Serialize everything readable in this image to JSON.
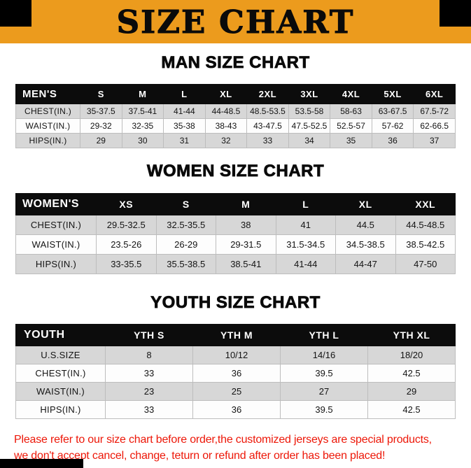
{
  "banner": {
    "title": "SIZE CHART",
    "bg_color": "#EC9B1D",
    "corner_color": "#000000"
  },
  "sections": [
    {
      "heading": "MAN SIZE CHART"
    },
    {
      "heading": "WOMEN SIZE CHART"
    },
    {
      "heading": "YOUTH SIZE CHART"
    }
  ],
  "chart_data": [
    {
      "type": "table",
      "title": "MAN SIZE CHART",
      "columns": [
        "MEN'S",
        "S",
        "M",
        "L",
        "XL",
        "2XL",
        "3XL",
        "4XL",
        "5XL",
        "6XL"
      ],
      "rows": [
        [
          "CHEST(IN.)",
          "35-37.5",
          "37.5-41",
          "41-44",
          "44-48.5",
          "48.5-53.5",
          "53.5-58",
          "58-63",
          "63-67.5",
          "67.5-72"
        ],
        [
          "WAIST(IN.)",
          "29-32",
          "32-35",
          "35-38",
          "38-43",
          "43-47.5",
          "47.5-52.5",
          "52.5-57",
          "57-62",
          "62-66.5"
        ],
        [
          "HIPS(IN.)",
          "29",
          "30",
          "31",
          "32",
          "33",
          "34",
          "35",
          "36",
          "37"
        ]
      ]
    },
    {
      "type": "table",
      "title": "WOMEN SIZE CHART",
      "columns": [
        "WOMEN'S",
        "XS",
        "S",
        "M",
        "L",
        "XL",
        "XXL"
      ],
      "rows": [
        [
          "CHEST(IN.)",
          "29.5-32.5",
          "32.5-35.5",
          "38",
          "41",
          "44.5",
          "44.5-48.5"
        ],
        [
          "WAIST(IN.)",
          "23.5-26",
          "26-29",
          "29-31.5",
          "31.5-34.5",
          "34.5-38.5",
          "38.5-42.5"
        ],
        [
          "HIPS(IN.)",
          "33-35.5",
          "35.5-38.5",
          "38.5-41",
          "41-44",
          "44-47",
          "47-50"
        ]
      ]
    },
    {
      "type": "table",
      "title": "YOUTH SIZE CHART",
      "columns": [
        "YOUTH",
        "YTH S",
        "YTH M",
        "YTH L",
        "YTH XL"
      ],
      "rows": [
        [
          "U.S.SIZE",
          "8",
          "10/12",
          "14/16",
          "18/20"
        ],
        [
          "CHEST(IN.)",
          "33",
          "36",
          "39.5",
          "42.5"
        ],
        [
          "WAIST(IN.)",
          "23",
          "25",
          "27",
          "29"
        ],
        [
          "HIPS(IN.)",
          "33",
          "36",
          "39.5",
          "42.5"
        ]
      ]
    }
  ],
  "footer": {
    "line1": "Please refer to our size chart before order,the customized jerseys are special products,",
    "line2": "we don't accept cancel, change, teturn or refund after order has been placed!",
    "text_color": "#ED1708"
  }
}
